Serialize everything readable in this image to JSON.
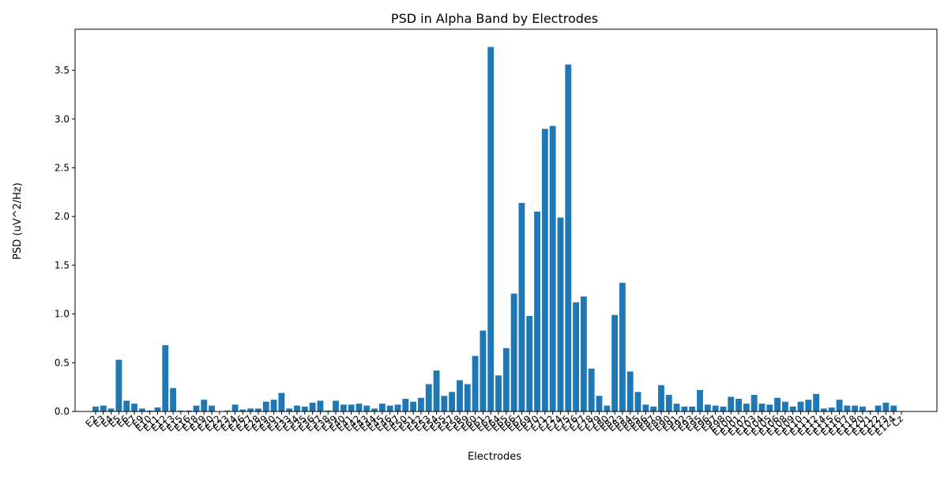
{
  "chart_data": {
    "type": "bar",
    "title": "PSD in Alpha Band by Electrodes",
    "xlabel": "Electrodes",
    "ylabel": "PSD (uV^2/Hz)",
    "ylim": [
      0,
      3.9
    ],
    "yticks": [
      0.0,
      0.5,
      1.0,
      1.5,
      2.0,
      2.5,
      3.0,
      3.5
    ],
    "ytick_labels": [
      "0.0",
      "0.5",
      "1.0",
      "1.5",
      "2.0",
      "2.5",
      "3.0",
      "3.5"
    ],
    "grid": false,
    "bar_color": "#1f77b4",
    "categories": [
      "E2",
      "E3",
      "E4",
      "E5",
      "E6",
      "E7",
      "E9",
      "E10",
      "E11",
      "E12",
      "E13",
      "E15",
      "E16",
      "E18",
      "E19",
      "E20",
      "E22",
      "E23",
      "E24",
      "E26",
      "E27",
      "E28",
      "E29",
      "E30",
      "E31",
      "E33",
      "E34",
      "E35",
      "E36",
      "E37",
      "E38",
      "E39",
      "E40",
      "E41",
      "E42",
      "E43",
      "E44",
      "E45",
      "E46",
      "E47",
      "E50",
      "E51",
      "E52",
      "E53",
      "E54",
      "E55",
      "E57",
      "E58",
      "E59",
      "E60",
      "E61",
      "E62",
      "E64",
      "E65",
      "E66",
      "E67",
      "E69",
      "E70",
      "E71",
      "E72",
      "E74",
      "E75",
      "E76",
      "E77",
      "E78",
      "E79",
      "E80",
      "E82",
      "E83",
      "E84",
      "E85",
      "E86",
      "E87",
      "E89",
      "E90",
      "E91",
      "E92",
      "E93",
      "E95",
      "E96",
      "E97",
      "E98",
      "E100",
      "E101",
      "E102",
      "E103",
      "E104",
      "E105",
      "E106",
      "E108",
      "E109",
      "E110",
      "E111",
      "E112",
      "E114",
      "E115",
      "E116",
      "E117",
      "E118",
      "E120",
      "E121",
      "E122",
      "E123",
      "E124",
      "Cz"
    ],
    "values": [
      0.05,
      0.06,
      0.03,
      0.53,
      0.11,
      0.08,
      0.03,
      0.01,
      0.04,
      0.68,
      0.24,
      0.01,
      0.01,
      0.06,
      0.12,
      0.06,
      0.0,
      0.01,
      0.07,
      0.02,
      0.03,
      0.03,
      0.1,
      0.12,
      0.19,
      0.03,
      0.06,
      0.05,
      0.09,
      0.11,
      0.01,
      0.11,
      0.07,
      0.07,
      0.08,
      0.06,
      0.03,
      0.08,
      0.06,
      0.07,
      0.13,
      0.1,
      0.14,
      0.28,
      0.42,
      0.16,
      0.2,
      0.32,
      0.28,
      0.57,
      0.83,
      3.74,
      0.37,
      0.65,
      1.21,
      2.14,
      0.98,
      2.05,
      2.9,
      2.93,
      1.99,
      3.56,
      1.12,
      1.18,
      0.44,
      0.16,
      0.06,
      0.99,
      1.32,
      0.41,
      0.2,
      0.07,
      0.05,
      0.27,
      0.17,
      0.08,
      0.05,
      0.05,
      0.22,
      0.07,
      0.06,
      0.05,
      0.15,
      0.13,
      0.08,
      0.17,
      0.08,
      0.07,
      0.14,
      0.1,
      0.05,
      0.1,
      0.12,
      0.18,
      0.03,
      0.04,
      0.12,
      0.06,
      0.06,
      0.05,
      0.01,
      0.06,
      0.09,
      0.06,
      0.0
    ]
  }
}
